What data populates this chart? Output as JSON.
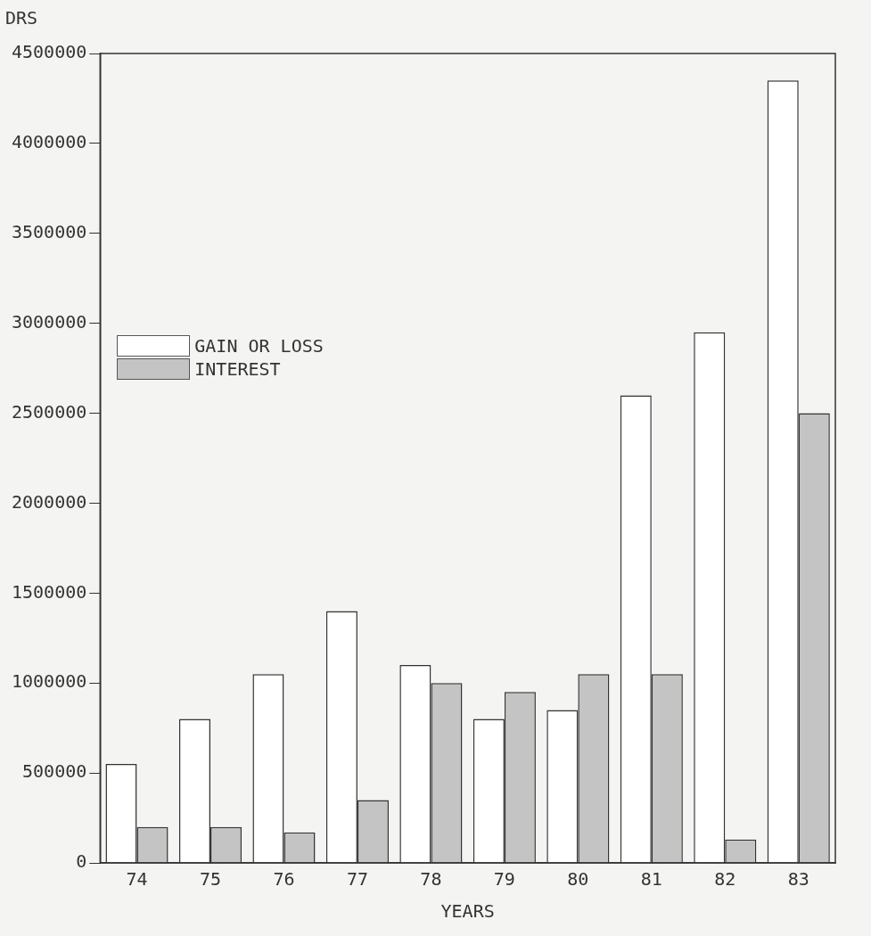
{
  "chart_data": {
    "type": "bar",
    "ylabel": "DRS",
    "xlabel": "YEARS",
    "categories": [
      "74",
      "75",
      "76",
      "77",
      "78",
      "79",
      "80",
      "81",
      "82",
      "83"
    ],
    "series": [
      {
        "name": "GAIN OR LOSS",
        "color": "#ffffff",
        "values": [
          550000,
          800000,
          1050000,
          1400000,
          1100000,
          800000,
          850000,
          2600000,
          2950000,
          4350000
        ]
      },
      {
        "name": "INTEREST",
        "color": "#c4c4c4",
        "values": [
          200000,
          200000,
          170000,
          350000,
          1000000,
          950000,
          1050000,
          1050000,
          130000,
          2500000
        ]
      }
    ],
    "ylim": [
      0,
      4500000
    ],
    "yticks": [
      0,
      500000,
      1000000,
      1500000,
      2000000,
      2500000,
      3000000,
      3500000,
      4000000,
      4500000
    ],
    "grid": false,
    "legend": "left"
  }
}
